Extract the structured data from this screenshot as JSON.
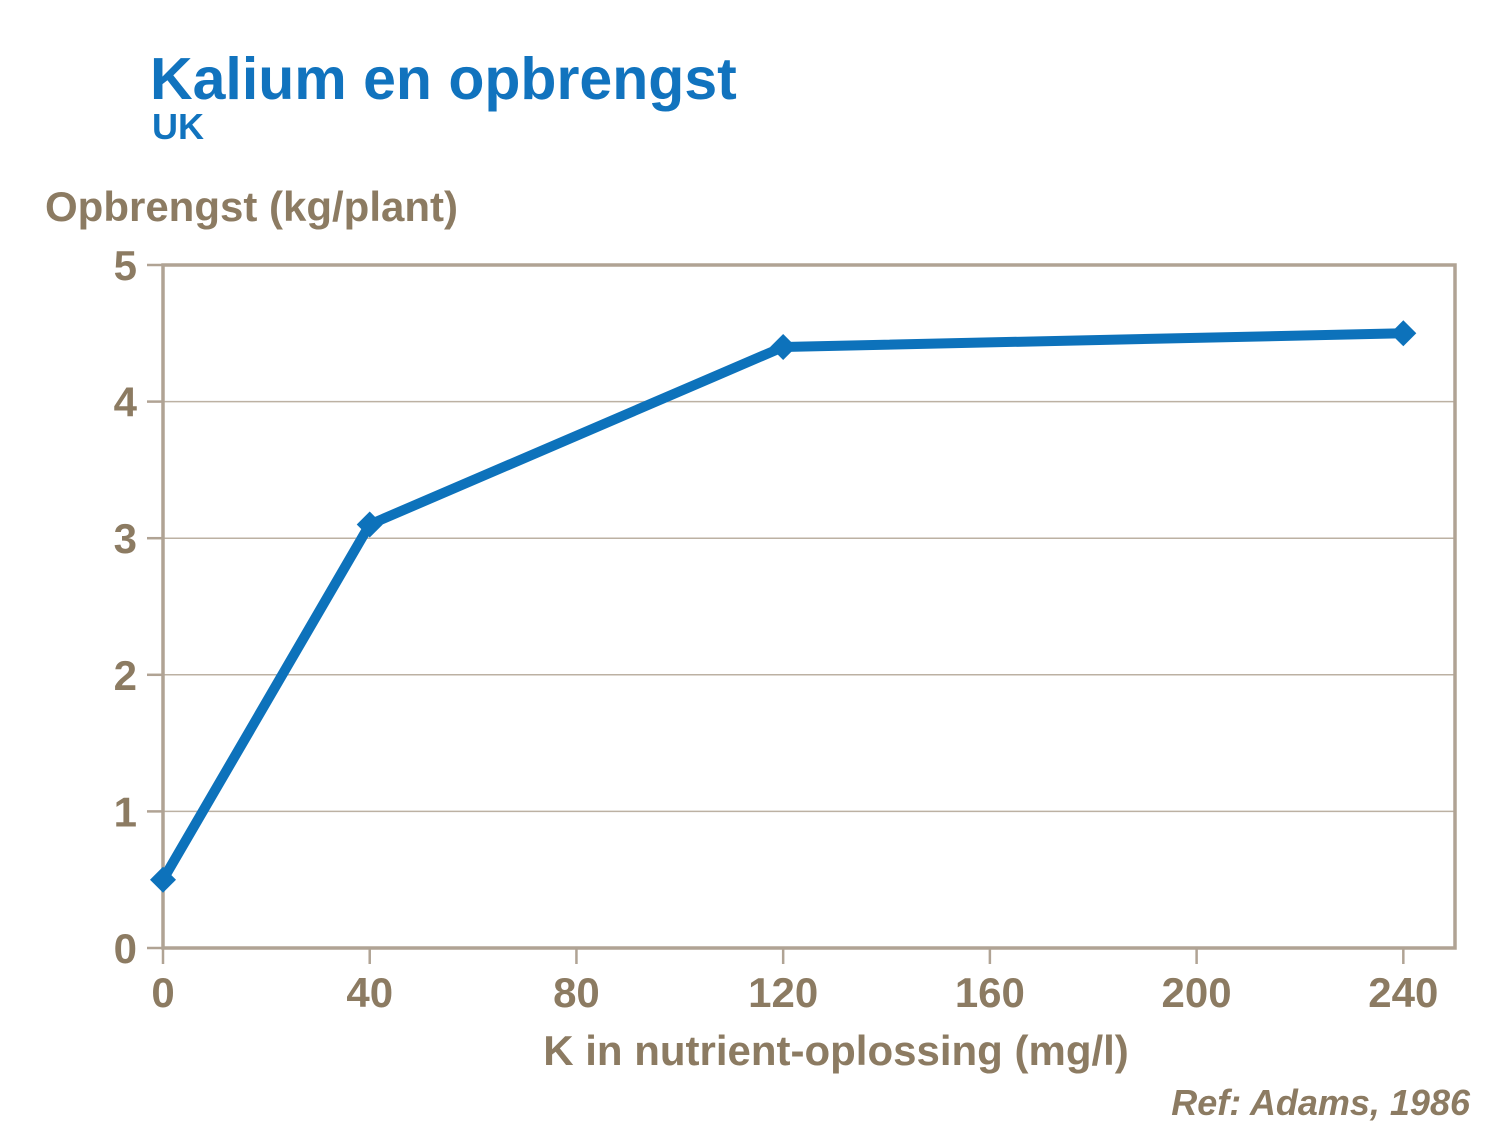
{
  "slide": {
    "title": "Kalium en opbrengst",
    "subtitle": "UK",
    "reference": "Ref: Adams, 1986"
  },
  "chart_data": {
    "type": "line",
    "series_name": "Opbrengst",
    "x": [
      0,
      40,
      120,
      240
    ],
    "y": [
      0.5,
      3.1,
      4.4,
      4.5
    ],
    "xlabel": "K in nutrient-oplossing (mg/l)",
    "ylabel": "Opbrengst (kg/plant)",
    "xlim": [
      0,
      250
    ],
    "ylim": [
      0,
      5
    ],
    "xticks": [
      0,
      40,
      80,
      120,
      160,
      200,
      240
    ],
    "yticks": [
      0,
      1,
      2,
      3,
      4,
      5
    ],
    "grid": "horizontal",
    "legend": "none",
    "marker": "diamond",
    "colors": {
      "line": "#0D72BB",
      "title": "#1173BE",
      "axis": "#B0A394",
      "grid": "#BCB1A3",
      "text": "#8C7B62"
    }
  }
}
